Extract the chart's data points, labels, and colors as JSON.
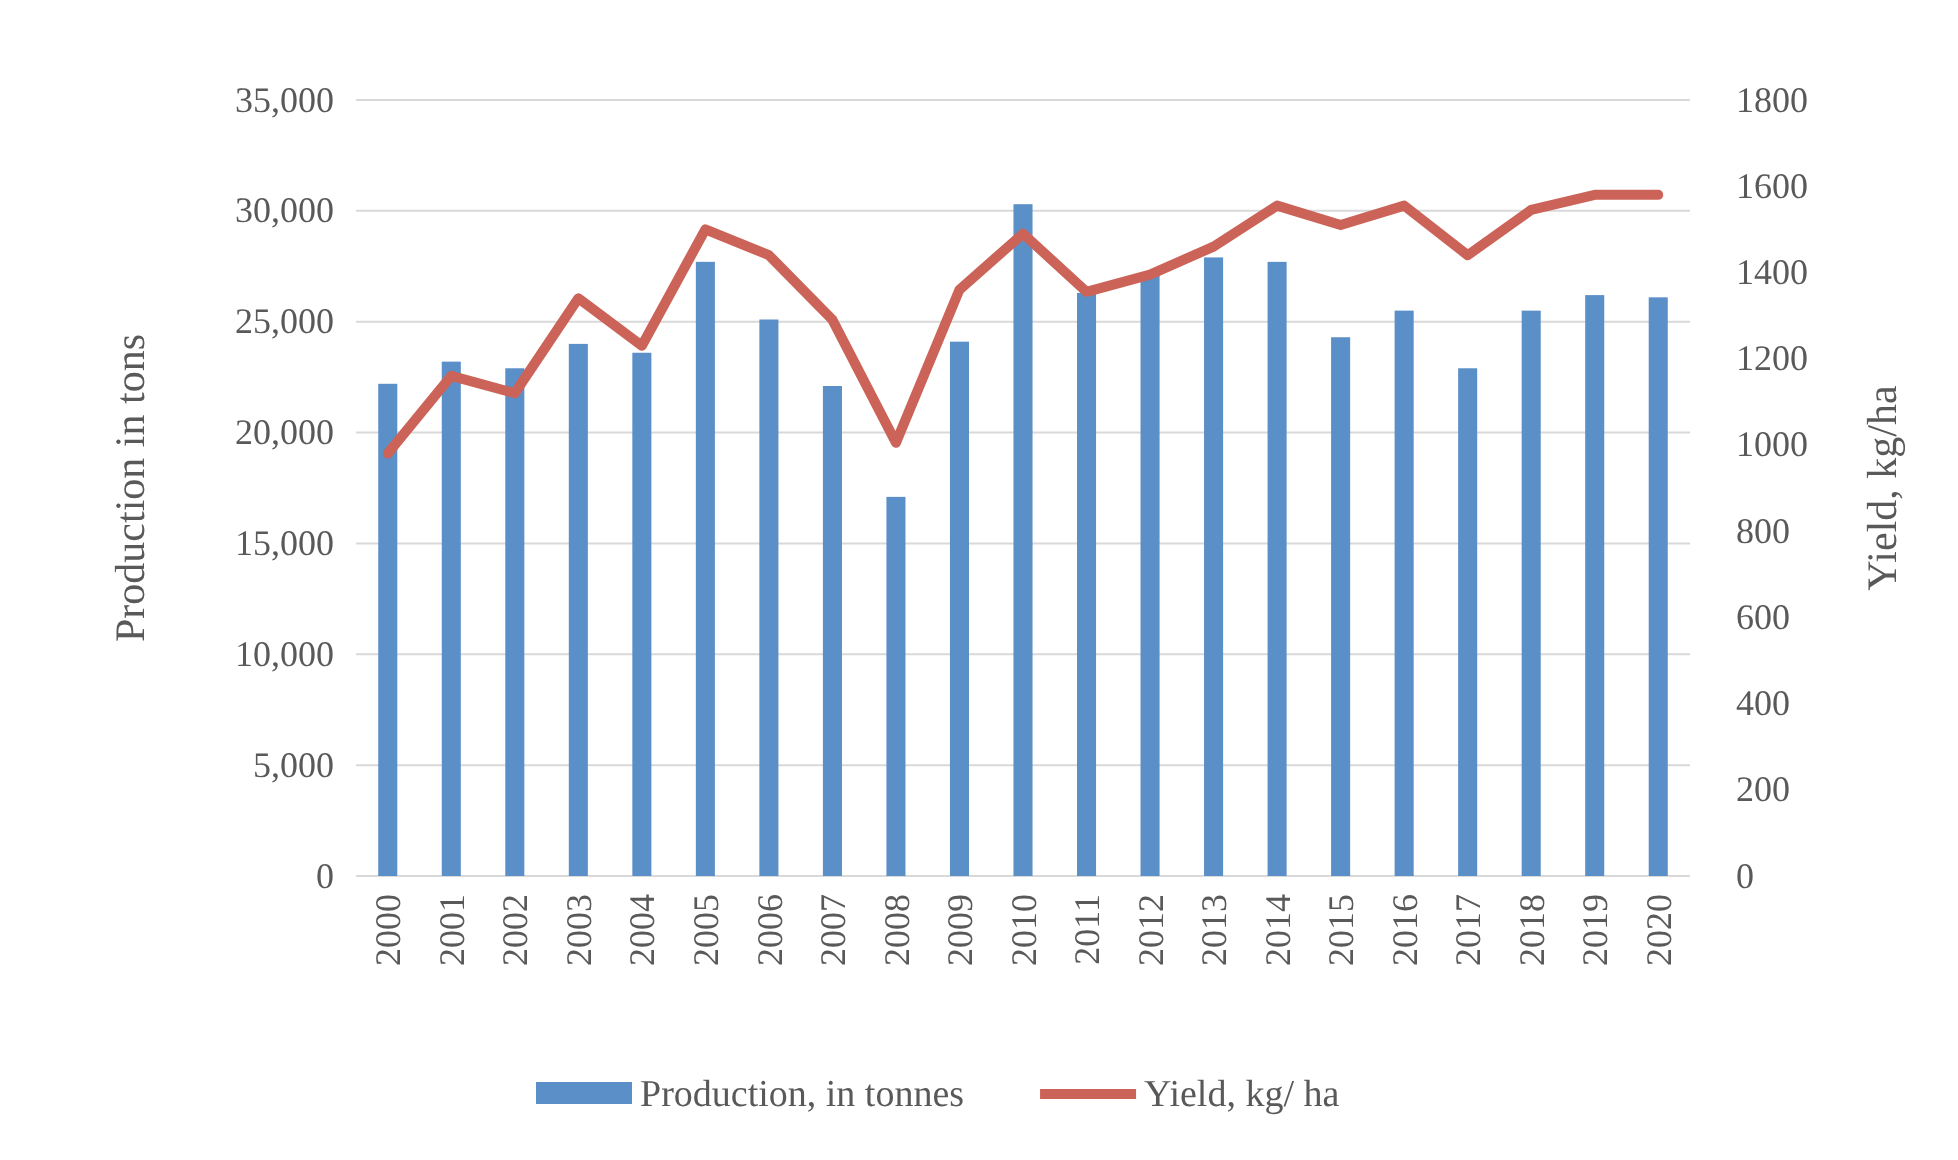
{
  "chart_data": {
    "type": "bar",
    "ylabel": "Production in tons",
    "y2label": "Yield, kg/ha",
    "categories": [
      "2000",
      "2001",
      "2002",
      "2003",
      "2004",
      "2005",
      "2006",
      "2007",
      "2008",
      "2009",
      "2010",
      "2011",
      "2012",
      "2013",
      "2014",
      "2015",
      "2016",
      "2017",
      "2018",
      "2019",
      "2020"
    ],
    "series": [
      {
        "name": "Production, in tonnes",
        "color": "#5b8fc7",
        "values": [
          22200,
          23200,
          22900,
          24000,
          23600,
          27700,
          25100,
          22100,
          17100,
          24100,
          30300,
          26300,
          27100,
          27900,
          27700,
          24300,
          25500,
          22900,
          25500,
          26200,
          26100
        ]
      },
      {
        "name": "Yield, kg/ ha",
        "type": "line",
        "axis": "y2",
        "color": "#cc6358",
        "values": [
          980,
          1160,
          1120,
          1340,
          1230,
          1500,
          1440,
          1290,
          1005,
          1360,
          1490,
          1355,
          1395,
          1460,
          1555,
          1510,
          1555,
          1440,
          1545,
          1580,
          1580
        ]
      }
    ],
    "ylim": [
      0,
      35000
    ],
    "yticks": [
      {
        "value": 0,
        "label": "0"
      },
      {
        "value": 5000,
        "label": "5,000"
      },
      {
        "value": 10000,
        "label": "10,000"
      },
      {
        "value": 15000,
        "label": "15,000"
      },
      {
        "value": 20000,
        "label": "20,000"
      },
      {
        "value": 25000,
        "label": "25,000"
      },
      {
        "value": 30000,
        "label": "30,000"
      },
      {
        "value": 35000,
        "label": "35,000"
      }
    ],
    "y2lim": [
      0,
      1800
    ],
    "y2ticks": [
      0,
      200,
      400,
      600,
      800,
      1000,
      1200,
      1400,
      1600,
      1800
    ],
    "grid": "y",
    "legend": "bottom"
  }
}
